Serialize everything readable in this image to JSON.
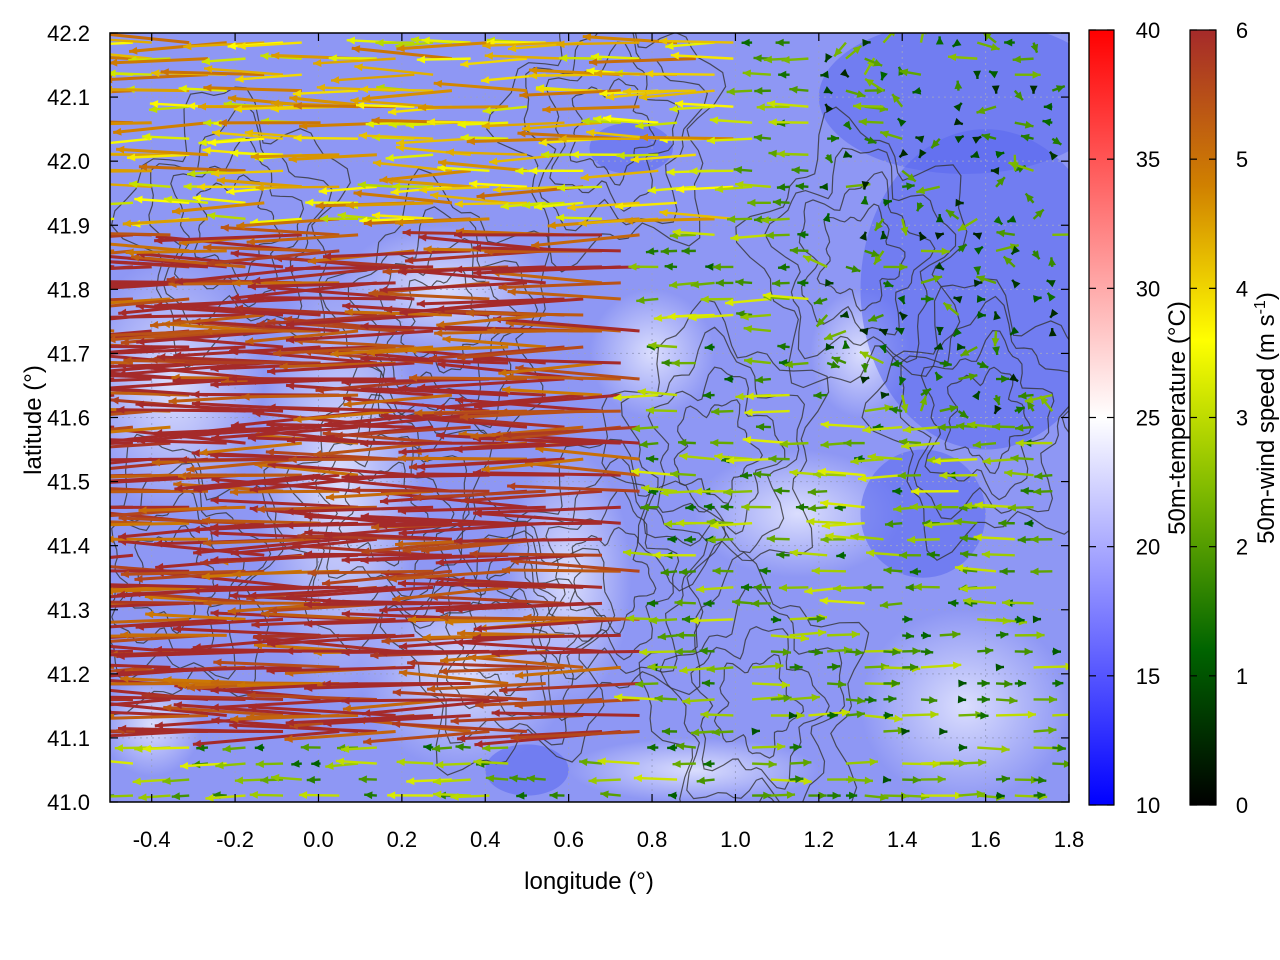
{
  "chart_data": {
    "type": "heatmap",
    "title": "",
    "xlabel": "longitude (°)",
    "ylabel": "latitude (°)",
    "xlim": [
      -0.5,
      1.8
    ],
    "ylim": [
      41.0,
      42.2
    ],
    "x_ticks": [
      "-0.4",
      "-0.2",
      "0.0",
      "0.2",
      "0.4",
      "0.6",
      "0.8",
      "1.0",
      "1.2",
      "1.4",
      "1.6",
      "1.8"
    ],
    "x_tick_values": [
      -0.4,
      -0.2,
      0.0,
      0.2,
      0.4,
      0.6,
      0.8,
      1.0,
      1.2,
      1.4,
      1.6,
      1.8
    ],
    "y_ticks": [
      "41.0",
      "41.1",
      "41.2",
      "41.3",
      "41.4",
      "41.5",
      "41.6",
      "41.7",
      "41.8",
      "41.9",
      "42.0",
      "42.1",
      "42.2"
    ],
    "y_tick_values": [
      41.0,
      41.1,
      41.2,
      41.3,
      41.4,
      41.5,
      41.6,
      41.7,
      41.8,
      41.9,
      42.0,
      42.1,
      42.2
    ],
    "grid": true,
    "temperature_colorbar": {
      "label": "50m-temperature (°C)",
      "range": [
        10,
        40
      ],
      "ticks": [
        "10",
        "15",
        "20",
        "25",
        "30",
        "35",
        "40"
      ],
      "tick_values": [
        10,
        15,
        20,
        25,
        30,
        35,
        40
      ],
      "colors": [
        "#0000ff",
        "#ffffff",
        "#ff0000"
      ]
    },
    "wind_colorbar": {
      "label_main": "50m-wind speed (m s",
      "label_sup": "-1",
      "label_end": ")",
      "range": [
        0,
        6
      ],
      "ticks": [
        "0",
        "1",
        "2",
        "3",
        "4",
        "5",
        "6"
      ],
      "tick_values": [
        0,
        1,
        2,
        3,
        4,
        5,
        6
      ],
      "colors": [
        "#000000",
        "#006400",
        "#7cb800",
        "#ffff00",
        "#d08000",
        "#a52a2a"
      ]
    },
    "temperature_field_range_c": [
      13,
      23
    ],
    "wind_field": {
      "regions": [
        {
          "name": "strong westward flow",
          "lon": [
            -0.5,
            0.8
          ],
          "lat": [
            41.1,
            41.9
          ],
          "speed_ms": 6,
          "direction": "west"
        },
        {
          "name": "moderate westward flow north",
          "lon": [
            -0.5,
            1.0
          ],
          "lat": [
            41.9,
            42.2
          ],
          "speed_ms": 4,
          "direction": "west"
        },
        {
          "name": "weak eastward flow southeast",
          "lon": [
            1.0,
            1.8
          ],
          "lat": [
            41.0,
            41.3
          ],
          "speed_ms": 2,
          "direction": "east"
        },
        {
          "name": "weak variable flow northeast",
          "lon": [
            1.2,
            1.8
          ],
          "lat": [
            41.6,
            42.2
          ],
          "speed_ms": 1.5,
          "direction": "variable"
        }
      ]
    }
  }
}
